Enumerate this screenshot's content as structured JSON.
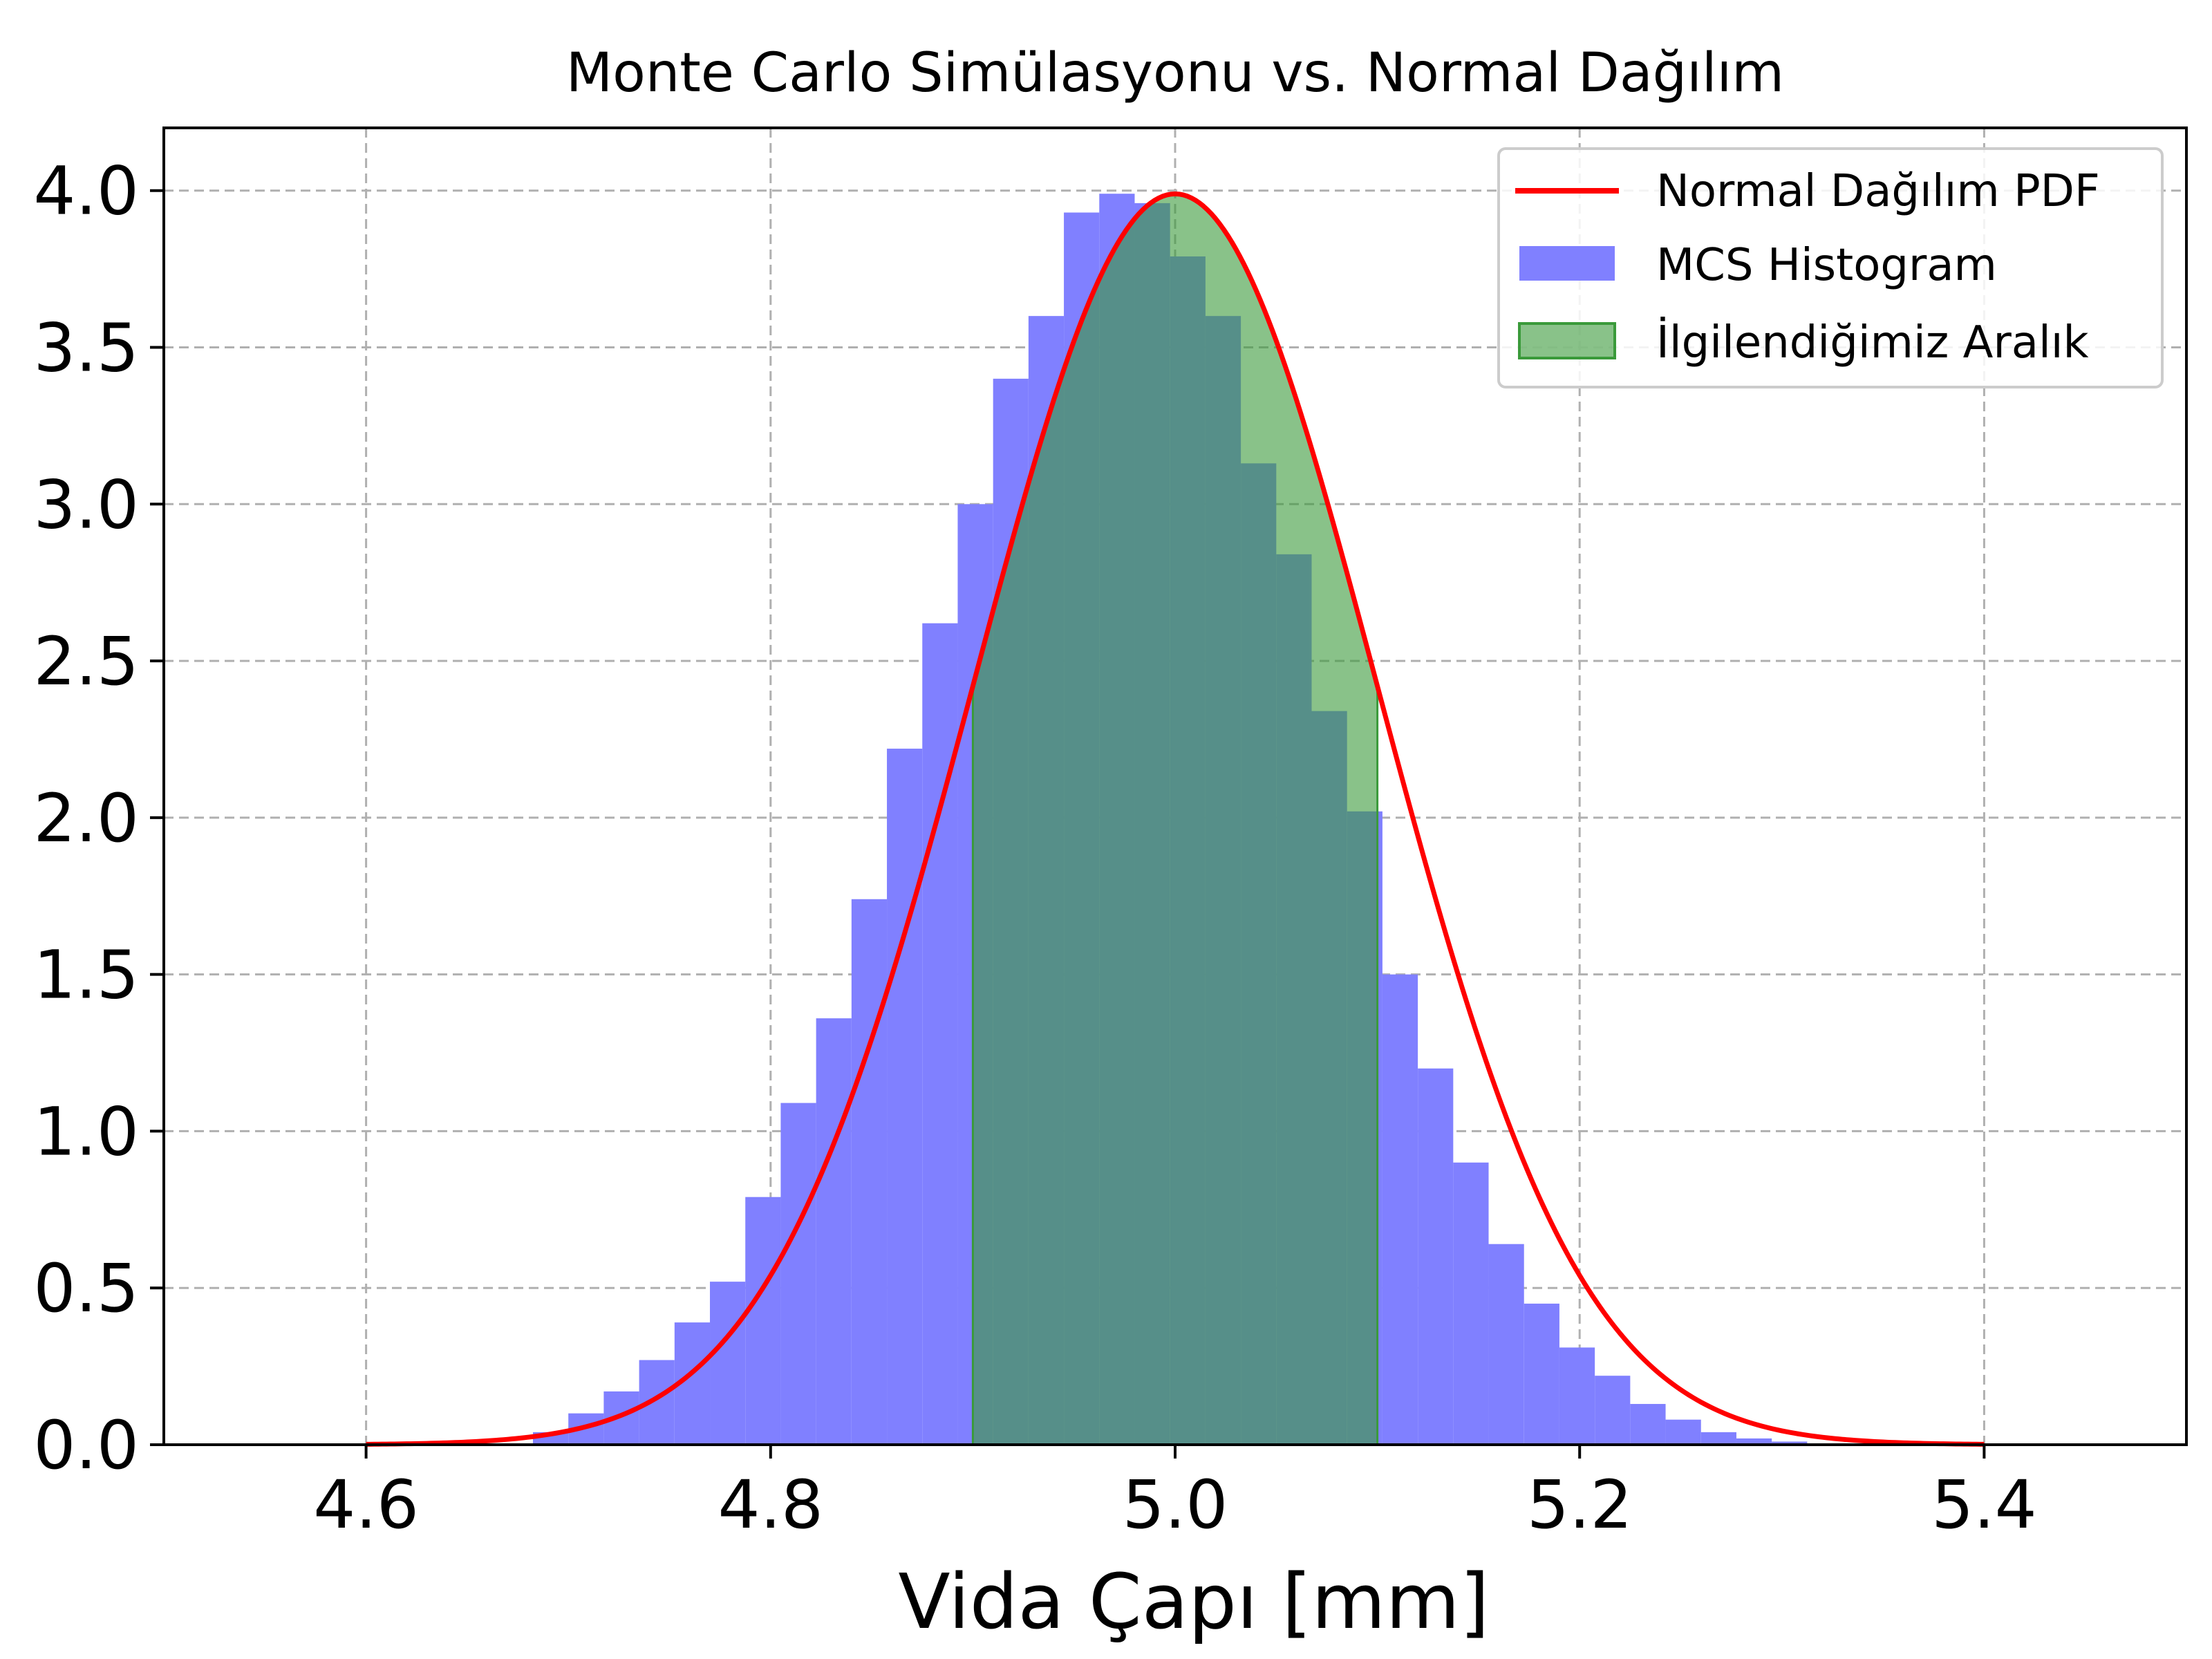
{
  "chart_data": {
    "type": "bar",
    "title": "Monte Carlo Simülasyonu vs. Normal Dağılım",
    "xlabel": "Vida Çapı [mm]",
    "ylabel": "",
    "xlim": [
      4.5,
      5.5
    ],
    "ylim": [
      0,
      4.2
    ],
    "xticks": [
      "4.6",
      "4.8",
      "5.0",
      "5.2",
      "5.4"
    ],
    "xtick_values": [
      4.6,
      4.8,
      5.0,
      5.2,
      5.4
    ],
    "yticks": [
      "0.0",
      "0.5",
      "1.0",
      "1.5",
      "2.0",
      "2.5",
      "3.0",
      "3.5",
      "4.0"
    ],
    "ytick_values": [
      0,
      0.5,
      1.0,
      1.5,
      2.0,
      2.5,
      3.0,
      3.5,
      4.0
    ],
    "grid": true,
    "legend_position": "top-right",
    "series": [
      {
        "name": "Normal Dağılım PDF",
        "kind": "line",
        "color": "#ff0000",
        "mean": 5.0,
        "std": 0.1,
        "x_range": [
          4.6,
          5.4
        ]
      },
      {
        "name": "MCS Histogram",
        "kind": "histogram",
        "color": "#8080ff",
        "bin_edges": [
          4.6825,
          4.7,
          4.7175,
          4.735,
          4.7525,
          4.77,
          4.7875,
          4.805,
          4.8225,
          4.84,
          4.8575,
          4.875,
          4.8925,
          4.91,
          4.9275,
          4.945,
          4.9625,
          4.98,
          4.9975,
          5.015,
          5.0325,
          5.05,
          5.0675,
          5.085,
          5.1025,
          5.12,
          5.1375,
          5.155,
          5.1725,
          5.19,
          5.2075,
          5.225,
          5.2425,
          5.26,
          5.2775,
          5.295,
          5.3125
        ],
        "values": [
          0.04,
          0.1,
          0.17,
          0.27,
          0.39,
          0.52,
          0.79,
          1.09,
          1.36,
          1.74,
          2.22,
          2.62,
          3.0,
          3.4,
          3.6,
          3.93,
          3.99,
          3.96,
          3.79,
          3.6,
          3.13,
          2.84,
          2.34,
          2.02,
          1.5,
          1.2,
          0.9,
          0.64,
          0.45,
          0.31,
          0.22,
          0.13,
          0.08,
          0.04,
          0.02,
          0.01
        ]
      },
      {
        "name": "İlgilendiğimiz Aralık",
        "kind": "shaded_region",
        "color": "#3a9a3a",
        "x_range": [
          4.9,
          5.1
        ]
      }
    ]
  }
}
